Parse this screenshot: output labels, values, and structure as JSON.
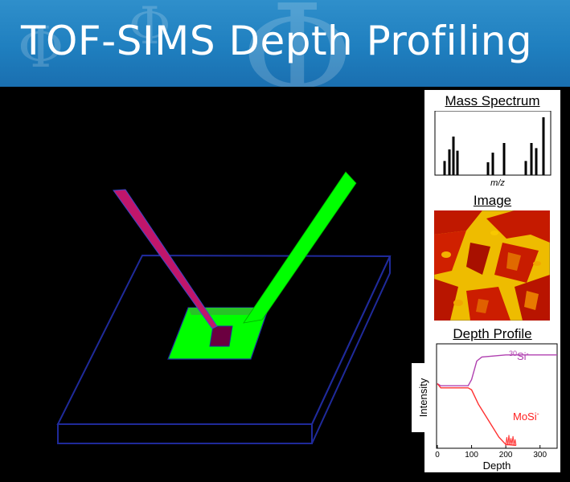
{
  "header": {
    "title": "TOF-SIMS Depth Profiling"
  },
  "panel": {
    "mass_spectrum": {
      "title": "Mass Spectrum",
      "xlabel": "m/z"
    },
    "image": {
      "title": "Image"
    },
    "depth_profile": {
      "title": "Depth Profile",
      "ylabel": "Intensity",
      "xlabel": "Depth",
      "label_si_sup": "30",
      "label_si": "Si",
      "label_si_charge": "-",
      "label_mosi": "MoSi",
      "label_mosi_charge": "-",
      "xticks": [
        "0",
        "100",
        "200",
        "300"
      ]
    }
  },
  "colors": {
    "banner": "#1f7fbf",
    "sample_outline": "#1f2a9a",
    "crater": "#00ff00",
    "primary_beam": "#c0166b",
    "secondary_beam": "#00ff00",
    "si_trace": "#b040b0",
    "mosi_trace": "#ff3030"
  },
  "chart_data": {
    "type": "line",
    "xlabel": "Depth",
    "ylabel": "Intensity",
    "xlim": [
      0,
      350
    ],
    "x_ticks": [
      0,
      100,
      200,
      300
    ],
    "series": [
      {
        "name": "30Si-",
        "x": [
          0,
          10,
          90,
          100,
          115,
          130,
          200,
          350
        ],
        "y": [
          0.62,
          0.6,
          0.6,
          0.66,
          0.84,
          0.88,
          0.9,
          0.9
        ]
      },
      {
        "name": "MoSi-",
        "x": [
          0,
          10,
          90,
          100,
          120,
          150,
          180,
          200,
          230
        ],
        "y": [
          0.62,
          0.58,
          0.58,
          0.56,
          0.42,
          0.26,
          0.1,
          0.03,
          0.02
        ]
      }
    ]
  }
}
